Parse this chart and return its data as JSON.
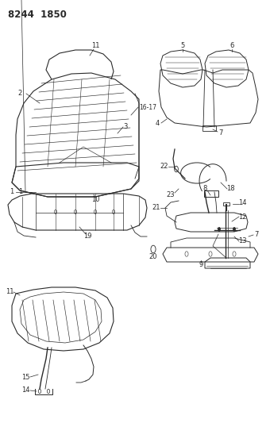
{
  "title": "8244  1850",
  "bg_color": "#ffffff",
  "line_color": "#2a2a2a",
  "title_fontsize": 8.5,
  "label_fontsize": 6.0,
  "figsize": [
    3.4,
    5.33
  ],
  "dpi": 100
}
